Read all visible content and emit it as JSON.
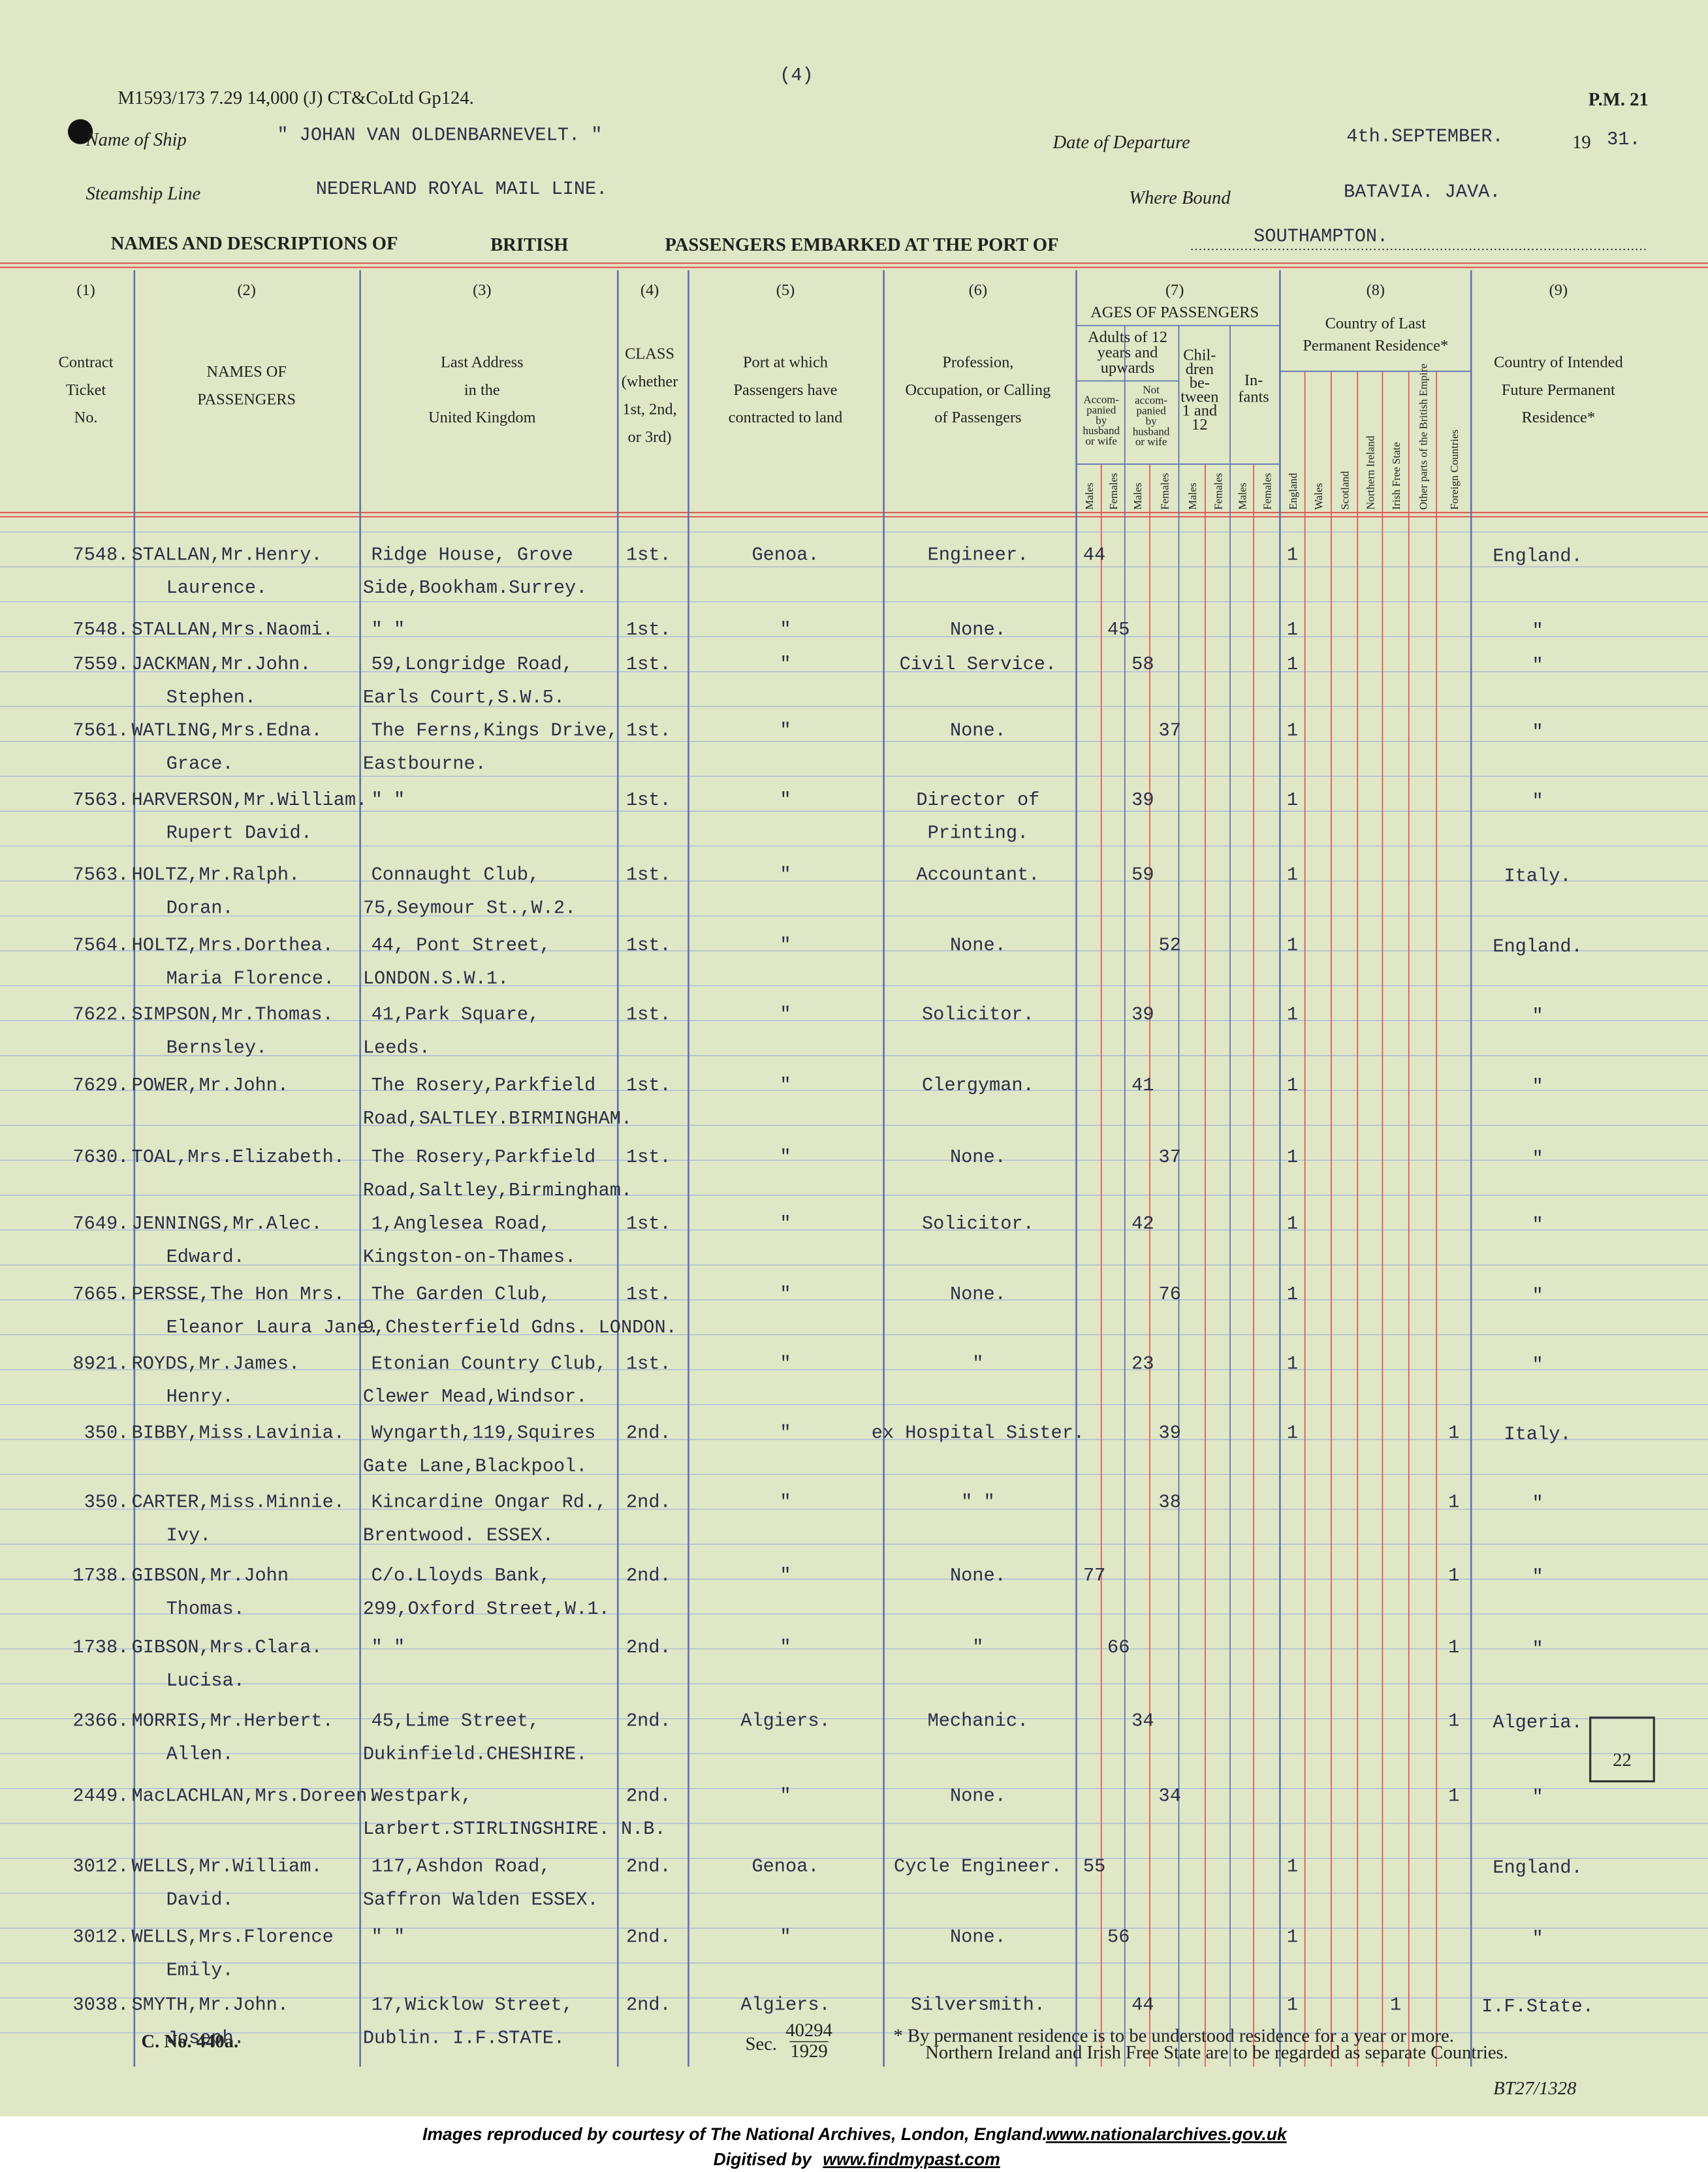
{
  "header": {
    "page_number": "(4)",
    "form_code": "P.M. 21",
    "print_code": "M1593/173 7.29 14,000 (J) CT&CoLtd Gp124.",
    "ship_label": "Name of Ship",
    "ship": "\" JOHAN VAN OLDENBARNEVELT. \"",
    "departure_label": "Date of Departure",
    "departure_date": "4th.SEPTEMBER.",
    "year_prefix": "19",
    "year_suffix": "31.",
    "line_label": "Steamship Line",
    "line": "NEDERLAND ROYAL MAIL LINE.",
    "bound_label": "Where Bound",
    "bound": "BATAVIA. JAVA.",
    "title_start": "NAMES AND DESCRIPTIONS OF",
    "title_emphasis": "BRITISH",
    "title_end": "PASSENGERS EMBARKED AT THE PORT OF",
    "port": "SOUTHAMPTON."
  },
  "columns": [
    {
      "number": "(1)",
      "label": [
        "Contract",
        "Ticket",
        "No."
      ]
    },
    {
      "number": "(2)",
      "label": [
        "NAMES OF",
        "PASSENGERS"
      ]
    },
    {
      "number": "(3)",
      "label": [
        "Last Address",
        "in the",
        "United Kingdom"
      ]
    },
    {
      "number": "(4)",
      "label": [
        "CLASS",
        "(whether",
        "1st, 2nd,",
        "or 3rd)"
      ]
    },
    {
      "number": "(5)",
      "label": [
        "Port at which",
        "Passengers have",
        "contracted to land"
      ]
    },
    {
      "number": "(6)",
      "label": [
        "Profession,",
        "Occupation, or Calling",
        "of Passengers"
      ]
    },
    {
      "number": "(7)",
      "label": [
        "AGES OF PASSENGERS"
      ]
    },
    {
      "number": "(8)",
      "label": [
        "Country of Last",
        "Permanent Residence*"
      ]
    },
    {
      "number": "(9)",
      "label": [
        "Country of Intended",
        "Future Permanent",
        "Residence*"
      ]
    }
  ],
  "age_groups": [
    [
      "Adults of 12",
      "years and",
      "upwards"
    ],
    [
      "Chil-",
      "dren",
      "be-",
      "tween",
      "1 and",
      "12"
    ],
    [
      "In-",
      "fants"
    ]
  ],
  "adult_subgroups": [
    [
      "Accom-",
      "panied",
      "by",
      "husband",
      "or wife"
    ],
    [
      "Not",
      "accom-",
      "panied",
      "by",
      "husband",
      "or wife"
    ]
  ],
  "age_sexes": [
    "Males",
    "Females",
    "Males",
    "Females",
    "Males",
    "Females",
    "Males",
    "Females"
  ],
  "countries": [
    "England",
    "Wales",
    "Scotland",
    "Northern Ireland",
    "Irish Free State",
    "Other parts of the British Empire",
    "Foreign Countries"
  ],
  "rows": [
    {
      "ticket": "7548.",
      "name": [
        "STALLAN,Mr.Henry.",
        "Laurence."
      ],
      "address": [
        "Ridge House, Grove",
        "Side,Bookham.Surrey."
      ],
      "class": "1st.",
      "port": "Genoa.",
      "profession": [
        "Engineer."
      ],
      "ages": [
        44,
        null,
        null,
        null,
        null,
        null,
        null,
        null
      ],
      "residence": [
        1,
        null,
        null,
        null,
        null,
        null,
        null
      ],
      "future": "England."
    },
    {
      "ticket": "7548.",
      "name": [
        "STALLAN,Mrs.Naomi."
      ],
      "address": [
        "\"        \""
      ],
      "class": "1st.",
      "port": "\"",
      "profession": [
        "None."
      ],
      "ages": [
        null,
        45,
        null,
        null,
        null,
        null,
        null,
        null
      ],
      "residence": [
        1,
        null,
        null,
        null,
        null,
        null,
        null
      ],
      "future": "\""
    },
    {
      "ticket": "7559.",
      "name": [
        "JACKMAN,Mr.John.",
        "Stephen."
      ],
      "address": [
        "59,Longridge Road,",
        "Earls Court,S.W.5."
      ],
      "class": "1st.",
      "port": "\"",
      "profession": [
        "Civil Service."
      ],
      "ages": [
        null,
        null,
        58,
        null,
        null,
        null,
        null,
        null
      ],
      "residence": [
        1,
        null,
        null,
        null,
        null,
        null,
        null
      ],
      "future": "\""
    },
    {
      "ticket": "7561.",
      "name": [
        "WATLING,Mrs.Edna.",
        "Grace."
      ],
      "address": [
        "The Ferns,Kings Drive,",
        "Eastbourne."
      ],
      "class": "1st.",
      "port": "\"",
      "profession": [
        "None."
      ],
      "ages": [
        null,
        null,
        null,
        37,
        null,
        null,
        null,
        null
      ],
      "residence": [
        1,
        null,
        null,
        null,
        null,
        null,
        null
      ],
      "future": "\""
    },
    {
      "ticket": "7563.",
      "name": [
        "HARVERSON,Mr.William.",
        "Rupert David."
      ],
      "address": [
        "\"        \""
      ],
      "class": "1st.",
      "port": "\"",
      "profession": [
        "Director of",
        "Printing."
      ],
      "ages": [
        null,
        null,
        39,
        null,
        null,
        null,
        null,
        null
      ],
      "residence": [
        1,
        null,
        null,
        null,
        null,
        null,
        null
      ],
      "future": "\""
    },
    {
      "ticket": "7563.",
      "name": [
        "HOLTZ,Mr.Ralph.",
        "Doran."
      ],
      "address": [
        "Connaught Club,",
        "75,Seymour St.,W.2."
      ],
      "class": "1st.",
      "port": "\"",
      "profession": [
        "Accountant."
      ],
      "ages": [
        null,
        null,
        59,
        null,
        null,
        null,
        null,
        null
      ],
      "residence": [
        1,
        null,
        null,
        null,
        null,
        null,
        null
      ],
      "future": "Italy."
    },
    {
      "ticket": "7564.",
      "name": [
        "HOLTZ,Mrs.Dorthea.",
        "Maria Florence."
      ],
      "address": [
        "44, Pont Street,",
        "LONDON.S.W.1."
      ],
      "class": "1st.",
      "port": "\"",
      "profession": [
        "None."
      ],
      "ages": [
        null,
        null,
        null,
        52,
        null,
        null,
        null,
        null
      ],
      "residence": [
        1,
        null,
        null,
        null,
        null,
        null,
        null
      ],
      "future": "England."
    },
    {
      "ticket": "7622.",
      "name": [
        "SIMPSON,Mr.Thomas.",
        "Bernsley."
      ],
      "address": [
        "41,Park Square,",
        "Leeds."
      ],
      "class": "1st.",
      "port": "\"",
      "profession": [
        "Solicitor."
      ],
      "ages": [
        null,
        null,
        39,
        null,
        null,
        null,
        null,
        null
      ],
      "residence": [
        1,
        null,
        null,
        null,
        null,
        null,
        null
      ],
      "future": "\""
    },
    {
      "ticket": "7629.",
      "name": [
        "POWER,Mr.John."
      ],
      "address": [
        "The Rosery,Parkfield",
        "Road,SALTLEY.BIRMINGHAM."
      ],
      "class": "1st.",
      "port": "\"",
      "profession": [
        "Clergyman."
      ],
      "ages": [
        null,
        null,
        41,
        null,
        null,
        null,
        null,
        null
      ],
      "residence": [
        1,
        null,
        null,
        null,
        null,
        null,
        null
      ],
      "future": "\""
    },
    {
      "ticket": "7630.",
      "name": [
        "TOAL,Mrs.Elizabeth."
      ],
      "address": [
        "The Rosery,Parkfield",
        "Road,Saltley,Birmingham."
      ],
      "class": "1st.",
      "port": "\"",
      "profession": [
        "None."
      ],
      "ages": [
        null,
        null,
        null,
        37,
        null,
        null,
        null,
        null
      ],
      "residence": [
        1,
        null,
        null,
        null,
        null,
        null,
        null
      ],
      "future": "\""
    },
    {
      "ticket": "7649.",
      "name": [
        "JENNINGS,Mr.Alec.",
        "Edward."
      ],
      "address": [
        "1,Anglesea Road,",
        "Kingston-on-Thames."
      ],
      "class": "1st.",
      "port": "\"",
      "profession": [
        "Solicitor."
      ],
      "ages": [
        null,
        null,
        42,
        null,
        null,
        null,
        null,
        null
      ],
      "residence": [
        1,
        null,
        null,
        null,
        null,
        null,
        null
      ],
      "future": "\""
    },
    {
      "ticket": "7665.",
      "name": [
        "PERSSE,The Hon Mrs.",
        "Eleanor Laura Jane."
      ],
      "address": [
        "The Garden Club,",
        "9,Chesterfield Gdns. LONDON."
      ],
      "class": "1st.",
      "port": "\"",
      "profession": [
        "None."
      ],
      "ages": [
        null,
        null,
        null,
        76,
        null,
        null,
        null,
        null
      ],
      "residence": [
        1,
        null,
        null,
        null,
        null,
        null,
        null
      ],
      "future": "\""
    },
    {
      "ticket": "8921.",
      "name": [
        "ROYDS,Mr.James.",
        "Henry."
      ],
      "address": [
        "Etonian Country Club,",
        "Clewer Mead,Windsor."
      ],
      "class": "1st.",
      "port": "\"",
      "profession": [
        "\""
      ],
      "ages": [
        null,
        null,
        23,
        null,
        null,
        null,
        null,
        null
      ],
      "residence": [
        1,
        null,
        null,
        null,
        null,
        null,
        null
      ],
      "future": "\""
    },
    {
      "ticket": "350.",
      "name": [
        "BIBBY,Miss.Lavinia."
      ],
      "address": [
        "Wyngarth,119,Squires",
        "Gate Lane,Blackpool."
      ],
      "class": "2nd.",
      "port": "\"",
      "profession": [
        "ex Hospital Sister."
      ],
      "ages": [
        null,
        null,
        null,
        39,
        null,
        null,
        null,
        null
      ],
      "residence": [
        1,
        null,
        null,
        null,
        null,
        null,
        1
      ],
      "future": "Italy."
    },
    {
      "ticket": "350.",
      "name": [
        "CARTER,Miss.Minnie.",
        "Ivy."
      ],
      "address": [
        "Kincardine Ongar Rd.,",
        "Brentwood. ESSEX."
      ],
      "class": "2nd.",
      "port": "\"",
      "profession": [
        "\"    \""
      ],
      "ages": [
        null,
        null,
        null,
        38,
        null,
        null,
        null,
        null
      ],
      "residence": [
        null,
        null,
        null,
        null,
        null,
        null,
        1
      ],
      "future": "\""
    },
    {
      "ticket": "1738.",
      "name": [
        "GIBSON,Mr.John",
        "Thomas."
      ],
      "address": [
        "C/o.Lloyds Bank,",
        "299,Oxford Street,W.1."
      ],
      "class": "2nd.",
      "port": "\"",
      "profession": [
        "None."
      ],
      "ages": [
        77,
        null,
        null,
        null,
        null,
        null,
        null,
        null
      ],
      "residence": [
        null,
        null,
        null,
        null,
        null,
        null,
        1
      ],
      "future": "\""
    },
    {
      "ticket": "1738.",
      "name": [
        "GIBSON,Mrs.Clara.",
        "Lucisa."
      ],
      "address": [
        "\"        \""
      ],
      "class": "2nd.",
      "port": "\"",
      "profession": [
        "\""
      ],
      "ages": [
        null,
        66,
        null,
        null,
        null,
        null,
        null,
        null
      ],
      "residence": [
        null,
        null,
        null,
        null,
        null,
        null,
        1
      ],
      "future": "\""
    },
    {
      "ticket": "2366.",
      "name": [
        "MORRIS,Mr.Herbert.",
        "Allen."
      ],
      "address": [
        "45,Lime Street,",
        "Dukinfield.CHESHIRE."
      ],
      "class": "2nd.",
      "port": "Algiers.",
      "profession": [
        "Mechanic."
      ],
      "ages": [
        null,
        null,
        34,
        null,
        null,
        null,
        null,
        null
      ],
      "residence": [
        null,
        null,
        null,
        null,
        null,
        null,
        1
      ],
      "future": "Algeria."
    },
    {
      "ticket": "2449.",
      "name": [
        "MacLACHLAN,Mrs.Doreen."
      ],
      "address": [
        "Westpark,",
        "Larbert.STIRLINGSHIRE. N.B."
      ],
      "class": "2nd.",
      "port": "\"",
      "profession": [
        "None."
      ],
      "ages": [
        null,
        null,
        null,
        34,
        null,
        null,
        null,
        null
      ],
      "residence": [
        null,
        null,
        null,
        null,
        null,
        null,
        1
      ],
      "future": "\""
    },
    {
      "ticket": "3012.",
      "name": [
        "WELLS,Mr.William.",
        "David."
      ],
      "address": [
        "117,Ashdon Road,",
        "Saffron Walden ESSEX."
      ],
      "class": "2nd.",
      "port": "Genoa.",
      "profession": [
        "Cycle Engineer."
      ],
      "ages": [
        55,
        null,
        null,
        null,
        null,
        null,
        null,
        null
      ],
      "residence": [
        1,
        null,
        null,
        null,
        null,
        null,
        null
      ],
      "future": "England."
    },
    {
      "ticket": "3012.",
      "name": [
        "WELLS,Mrs.Florence",
        "Emily."
      ],
      "address": [
        "\"        \""
      ],
      "class": "2nd.",
      "port": "\"",
      "profession": [
        "None."
      ],
      "ages": [
        null,
        56,
        null,
        null,
        null,
        null,
        null,
        null
      ],
      "residence": [
        1,
        null,
        null,
        null,
        null,
        null,
        null
      ],
      "future": "\""
    },
    {
      "ticket": "3038.",
      "name": [
        "SMYTH,Mr.John.",
        "Joseph."
      ],
      "address": [
        "17,Wicklow Street,",
        "Dublin. I.F.STATE."
      ],
      "class": "2nd.",
      "port": "Algiers.",
      "profession": [
        "Silversmith."
      ],
      "ages": [
        null,
        null,
        44,
        null,
        null,
        null,
        null,
        null
      ],
      "residence": [
        1,
        null,
        null,
        null,
        1,
        null,
        null
      ],
      "future": "I.F.State."
    }
  ],
  "footer": {
    "form_number": "C. No. 440a.",
    "section_label": "Sec.",
    "section_number": "40294",
    "section_year": "1929",
    "note": "* By permanent residence is to be understood residence for a year or more.",
    "note_2": "Northern Ireland and Irish Free State are to be regarded as separate Countries.",
    "page_tally": "22",
    "reference": "BT27/1328"
  },
  "credits": {
    "courtesy": "Images reproduced by courtesy of The National Archives, London, England.",
    "courtesy_url": "www.nationalarchives.gov.uk",
    "digitised": "Digitised by",
    "digitised_url": "www.findmypast.com"
  }
}
